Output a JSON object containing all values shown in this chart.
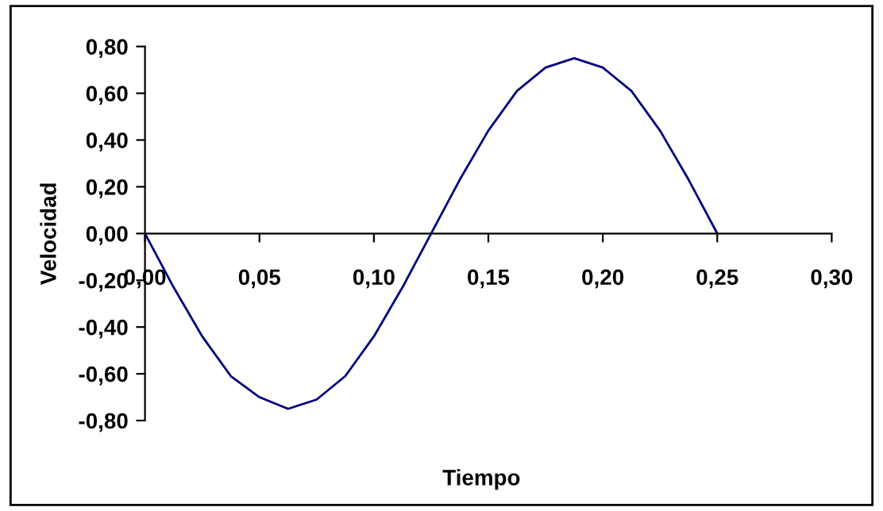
{
  "chart_data": {
    "type": "line",
    "xlabel": "Tiempo",
    "ylabel": "Velocidad",
    "x": [
      0,
      0.0125,
      0.025,
      0.0375,
      0.05,
      0.0625,
      0.075,
      0.0875,
      0.1,
      0.1125,
      0.125,
      0.1375,
      0.15,
      0.1625,
      0.175,
      0.1875,
      0.2,
      0.2125,
      0.225,
      0.2375,
      0.25
    ],
    "series": [
      {
        "color": "#000080",
        "values": [
          0,
          -0.23,
          -0.44,
          -0.61,
          -0.7,
          -0.75,
          -0.71,
          -0.61,
          -0.44,
          -0.23,
          0,
          0.23,
          0.44,
          0.61,
          0.71,
          0.75,
          0.71,
          0.61,
          0.44,
          0.23,
          0
        ]
      }
    ],
    "xlim": [
      0,
      0.3
    ],
    "ylim": [
      -0.8,
      0.8
    ],
    "xticks": [
      {
        "value": 0,
        "label": "0,00"
      },
      {
        "value": 0.05,
        "label": "0,05"
      },
      {
        "value": 0.1,
        "label": "0,10"
      },
      {
        "value": 0.15,
        "label": "0,15"
      },
      {
        "value": 0.2,
        "label": "0,20"
      },
      {
        "value": 0.25,
        "label": "0,25"
      },
      {
        "value": 0.3,
        "label": "0,30"
      }
    ],
    "yticks": [
      {
        "value": -0.8,
        "label": "-0,80"
      },
      {
        "value": -0.6,
        "label": "-0,60"
      },
      {
        "value": -0.4,
        "label": "-0,40"
      },
      {
        "value": -0.2,
        "label": "-0,20"
      },
      {
        "value": 0,
        "label": "0,00"
      },
      {
        "value": 0.2,
        "label": "0,20"
      },
      {
        "value": 0.4,
        "label": "0,40"
      },
      {
        "value": 0.6,
        "label": "0,60"
      },
      {
        "value": 0.8,
        "label": "0,80"
      }
    ],
    "grid": false,
    "legend": false,
    "marker": "none",
    "line_style": "solid"
  }
}
